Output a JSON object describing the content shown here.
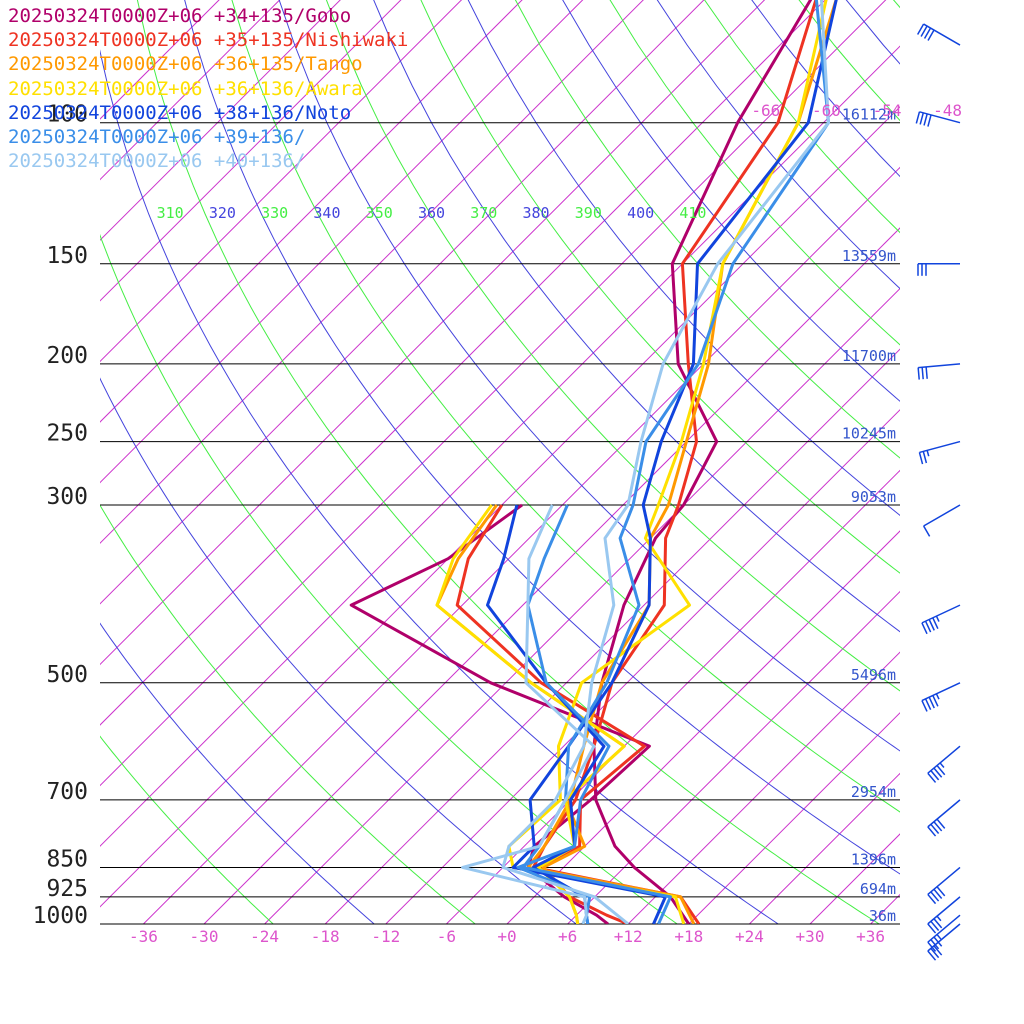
{
  "chart_data": {
    "type": "line",
    "title": "",
    "xlabel": "",
    "ylabel": "",
    "xlim": [
      -38,
      40
    ],
    "pressure_range": [
      100,
      1000
    ],
    "x_ticks": [
      "-36",
      "-30",
      "-24",
      "-18",
      "-12",
      "-6",
      "+0",
      "+6",
      "+12",
      "+18",
      "+24",
      "+30",
      "+36"
    ],
    "pressure_levels": [
      {
        "p": 100,
        "label": "100",
        "height": "16112m"
      },
      {
        "p": 150,
        "label": "150",
        "height": "13559m"
      },
      {
        "p": 200,
        "label": "200",
        "height": "11700m"
      },
      {
        "p": 250,
        "label": "250",
        "height": "10245m"
      },
      {
        "p": 300,
        "label": "300",
        "height": "9053m"
      },
      {
        "p": 500,
        "label": "500",
        "height": "5496m"
      },
      {
        "p": 700,
        "label": "700",
        "height": "2954m"
      },
      {
        "p": 850,
        "label": "850",
        "height": "1396m"
      },
      {
        "p": 925,
        "label": "925",
        "height": "694m"
      },
      {
        "p": 1000,
        "label": "1000",
        "height": "36m"
      }
    ],
    "theta_labels": [
      "310",
      "320",
      "330",
      "340",
      "350",
      "360",
      "370",
      "380",
      "390",
      "400",
      "410"
    ],
    "upper_temp_labels": [
      "-66",
      "-60",
      "-54",
      "-48"
    ],
    "colors": {
      "isotherm": "#cc33cc",
      "theta_blue": "#4444dd",
      "theta_green": "#44ee44",
      "isobar": "#000000",
      "height_label": "#3355cc",
      "tick_label": "#dd55cc"
    },
    "series": [
      {
        "name": "20250324T0000Z+06 +34+135/Gobo",
        "color": "#b0006a",
        "temperature": [
          [
            50,
            -62.0
          ],
          [
            70,
            -61.5
          ],
          [
            100,
            -56.5
          ],
          [
            150,
            -49.0
          ],
          [
            200,
            -38.5
          ],
          [
            250,
            -27.0
          ],
          [
            300,
            -24.0
          ],
          [
            330,
            -23.5
          ],
          [
            400,
            -20.0
          ],
          [
            500,
            -14.5
          ],
          [
            600,
            -9.0
          ],
          [
            700,
            -3.5
          ],
          [
            800,
            3.0
          ],
          [
            850,
            7.0
          ],
          [
            925,
            13.5
          ],
          [
            1000,
            18.0
          ]
        ],
        "dewpoint": [
          [
            300,
            -40.0
          ],
          [
            350,
            -42.0
          ],
          [
            400,
            -47.0
          ],
          [
            500,
            -25.5
          ],
          [
            600,
            -3.5
          ],
          [
            700,
            -4.0
          ],
          [
            800,
            -5.0
          ],
          [
            850,
            -3.5
          ],
          [
            925,
            3.0
          ],
          [
            975,
            8.0
          ],
          [
            1000,
            10.0
          ]
        ]
      },
      {
        "name": "20250324T0000Z+06 +35+135/Nishiwaki",
        "color": "#ee3322",
        "temperature": [
          [
            50,
            -62.5
          ],
          [
            70,
            -61.0
          ],
          [
            100,
            -52.5
          ],
          [
            150,
            -48.0
          ],
          [
            200,
            -37.5
          ],
          [
            250,
            -29.0
          ],
          [
            300,
            -24.5
          ],
          [
            330,
            -22.5
          ],
          [
            400,
            -16.0
          ],
          [
            500,
            -13.5
          ],
          [
            600,
            -9.0
          ],
          [
            700,
            -5.5
          ],
          [
            800,
            -4.0
          ],
          [
            850,
            -3.0
          ],
          [
            925,
            14.5
          ],
          [
            1000,
            19.0
          ]
        ],
        "dewpoint": [
          [
            300,
            -42.0
          ],
          [
            350,
            -40.0
          ],
          [
            400,
            -36.5
          ],
          [
            500,
            -20.5
          ],
          [
            600,
            -4.0
          ],
          [
            700,
            -5.0
          ],
          [
            800,
            -0.5
          ],
          [
            850,
            -2.0
          ],
          [
            925,
            3.5
          ],
          [
            975,
            9.0
          ],
          [
            1000,
            12.0
          ]
        ]
      },
      {
        "name": "20250324T0000Z+06 +36+135/Tango",
        "color": "#ff9900",
        "temperature": [
          [
            50,
            -63.5
          ],
          [
            70,
            -59.0
          ],
          [
            100,
            -50.5
          ],
          [
            150,
            -44.0
          ],
          [
            200,
            -35.5
          ],
          [
            250,
            -30.0
          ],
          [
            300,
            -25.5
          ],
          [
            330,
            -24.0
          ],
          [
            400,
            -17.5
          ],
          [
            500,
            -14.5
          ],
          [
            600,
            -10.0
          ],
          [
            700,
            -6.0
          ],
          [
            800,
            -4.0
          ],
          [
            850,
            -3.5
          ],
          [
            925,
            14.5
          ],
          [
            1000,
            18.5
          ]
        ],
        "dewpoint": [
          [
            300,
            -42.5
          ],
          [
            350,
            -41.0
          ],
          [
            400,
            -38.5
          ],
          [
            500,
            -21.5
          ],
          [
            600,
            -6.0
          ],
          [
            700,
            -6.5
          ],
          [
            800,
            0.0
          ],
          [
            850,
            -2.0
          ],
          [
            925,
            3.5
          ],
          [
            975,
            6.0
          ],
          [
            1000,
            7.0
          ]
        ]
      },
      {
        "name": "20250324T0000Z+06 +36+136/Awara",
        "color": "#ffe000",
        "temperature": [
          [
            50,
            -64.0
          ],
          [
            70,
            -60.0
          ],
          [
            100,
            -50.5
          ],
          [
            150,
            -44.0
          ],
          [
            200,
            -36.0
          ],
          [
            250,
            -30.5
          ],
          [
            300,
            -26.5
          ],
          [
            330,
            -24.5
          ],
          [
            400,
            -13.5
          ],
          [
            500,
            -16.5
          ],
          [
            600,
            -12.5
          ],
          [
            700,
            -7.0
          ],
          [
            800,
            -7.5
          ],
          [
            850,
            -5.0
          ],
          [
            925,
            14.0
          ],
          [
            1000,
            17.5
          ]
        ],
        "dewpoint": [
          [
            300,
            -43.0
          ],
          [
            350,
            -41.5
          ],
          [
            400,
            -38.5
          ],
          [
            500,
            -21.5
          ],
          [
            600,
            -6.0
          ],
          [
            700,
            -6.5
          ],
          [
            800,
            -1.0
          ],
          [
            850,
            -2.5
          ],
          [
            925,
            3.5
          ],
          [
            975,
            6.0
          ],
          [
            1000,
            7.0
          ]
        ]
      },
      {
        "name": "20250324T0000Z+06 +38+136/Noto",
        "color": "#1144dd",
        "temperature": [
          [
            50,
            -63.0
          ],
          [
            70,
            -59.0
          ],
          [
            100,
            -49.5
          ],
          [
            150,
            -46.5
          ],
          [
            200,
            -37.0
          ],
          [
            250,
            -32.5
          ],
          [
            300,
            -28.0
          ],
          [
            330,
            -24.0
          ],
          [
            400,
            -17.5
          ],
          [
            500,
            -13.5
          ],
          [
            600,
            -11.5
          ],
          [
            700,
            -10.0
          ],
          [
            800,
            -5.0
          ],
          [
            850,
            -5.0
          ],
          [
            925,
            13.0
          ],
          [
            1000,
            14.5
          ]
        ],
        "dewpoint": [
          [
            300,
            -40.5
          ],
          [
            350,
            -36.5
          ],
          [
            400,
            -33.5
          ],
          [
            500,
            -20.0
          ],
          [
            600,
            -8.0
          ],
          [
            700,
            -6.0
          ],
          [
            800,
            -1.0
          ],
          [
            850,
            -3.0
          ],
          [
            925,
            5.0
          ],
          [
            975,
            7.0
          ],
          [
            1000,
            8.0
          ]
        ]
      },
      {
        "name": "20250324T0000Z+06 +39+136/",
        "color": "#3a8ee8",
        "temperature": [
          [
            50,
            -63.5
          ],
          [
            70,
            -61.0
          ],
          [
            100,
            -47.5
          ],
          [
            150,
            -43.0
          ],
          [
            200,
            -36.5
          ],
          [
            250,
            -34.0
          ],
          [
            300,
            -29.0
          ],
          [
            330,
            -27.0
          ],
          [
            400,
            -18.5
          ],
          [
            500,
            -14.0
          ],
          [
            600,
            -11.5
          ],
          [
            700,
            -6.5
          ],
          [
            800,
            -4.5
          ],
          [
            850,
            -4.0
          ],
          [
            925,
            13.5
          ],
          [
            1000,
            15.0
          ]
        ],
        "dewpoint": [
          [
            300,
            -35.5
          ],
          [
            350,
            -32.5
          ],
          [
            400,
            -29.5
          ],
          [
            500,
            -20.0
          ],
          [
            600,
            -7.5
          ],
          [
            700,
            -5.0
          ],
          [
            800,
            -1.0
          ],
          [
            850,
            -4.5
          ],
          [
            925,
            5.5
          ],
          [
            975,
            7.0
          ],
          [
            1000,
            8.0
          ]
        ]
      },
      {
        "name": "20250324T0000Z+06 +40+136/",
        "color": "#99c8f0",
        "temperature": [
          [
            50,
            -62.0
          ],
          [
            70,
            -60.5
          ],
          [
            100,
            -47.5
          ],
          [
            150,
            -44.5
          ],
          [
            200,
            -40.0
          ],
          [
            250,
            -34.5
          ],
          [
            300,
            -29.5
          ],
          [
            330,
            -28.5
          ],
          [
            400,
            -21.0
          ],
          [
            500,
            -15.5
          ],
          [
            600,
            -10.0
          ],
          [
            700,
            -7.5
          ],
          [
            800,
            -7.5
          ],
          [
            850,
            -6.0
          ],
          [
            925,
            6.0
          ],
          [
            1000,
            12.0
          ]
        ],
        "dewpoint": [
          [
            300,
            -37.0
          ],
          [
            350,
            -34.0
          ],
          [
            400,
            -29.5
          ],
          [
            500,
            -22.0
          ],
          [
            600,
            -9.0
          ],
          [
            700,
            -6.5
          ],
          [
            800,
            -4.5
          ],
          [
            850,
            -10.0
          ],
          [
            925,
            5.0
          ],
          [
            975,
            7.0
          ],
          [
            1000,
            7.5
          ]
        ]
      }
    ],
    "wind_barbs": [
      {
        "p": 80,
        "speed_kt": 40,
        "dir_deg": 300
      },
      {
        "p": 100,
        "speed_kt": 40,
        "dir_deg": 285
      },
      {
        "p": 150,
        "speed_kt": 30,
        "dir_deg": 270
      },
      {
        "p": 200,
        "speed_kt": 30,
        "dir_deg": 265
      },
      {
        "p": 250,
        "speed_kt": 25,
        "dir_deg": 255
      },
      {
        "p": 300,
        "speed_kt": 10,
        "dir_deg": 240
      },
      {
        "p": 400,
        "speed_kt": 45,
        "dir_deg": 245
      },
      {
        "p": 500,
        "speed_kt": 45,
        "dir_deg": 245
      },
      {
        "p": 600,
        "speed_kt": 45,
        "dir_deg": 230
      },
      {
        "p": 700,
        "speed_kt": 40,
        "dir_deg": 230
      },
      {
        "p": 850,
        "speed_kt": 40,
        "dir_deg": 230
      },
      {
        "p": 925,
        "speed_kt": 35,
        "dir_deg": 230
      },
      {
        "p": 975,
        "speed_kt": 35,
        "dir_deg": 230
      },
      {
        "p": 1000,
        "speed_kt": 30,
        "dir_deg": 230
      }
    ]
  }
}
